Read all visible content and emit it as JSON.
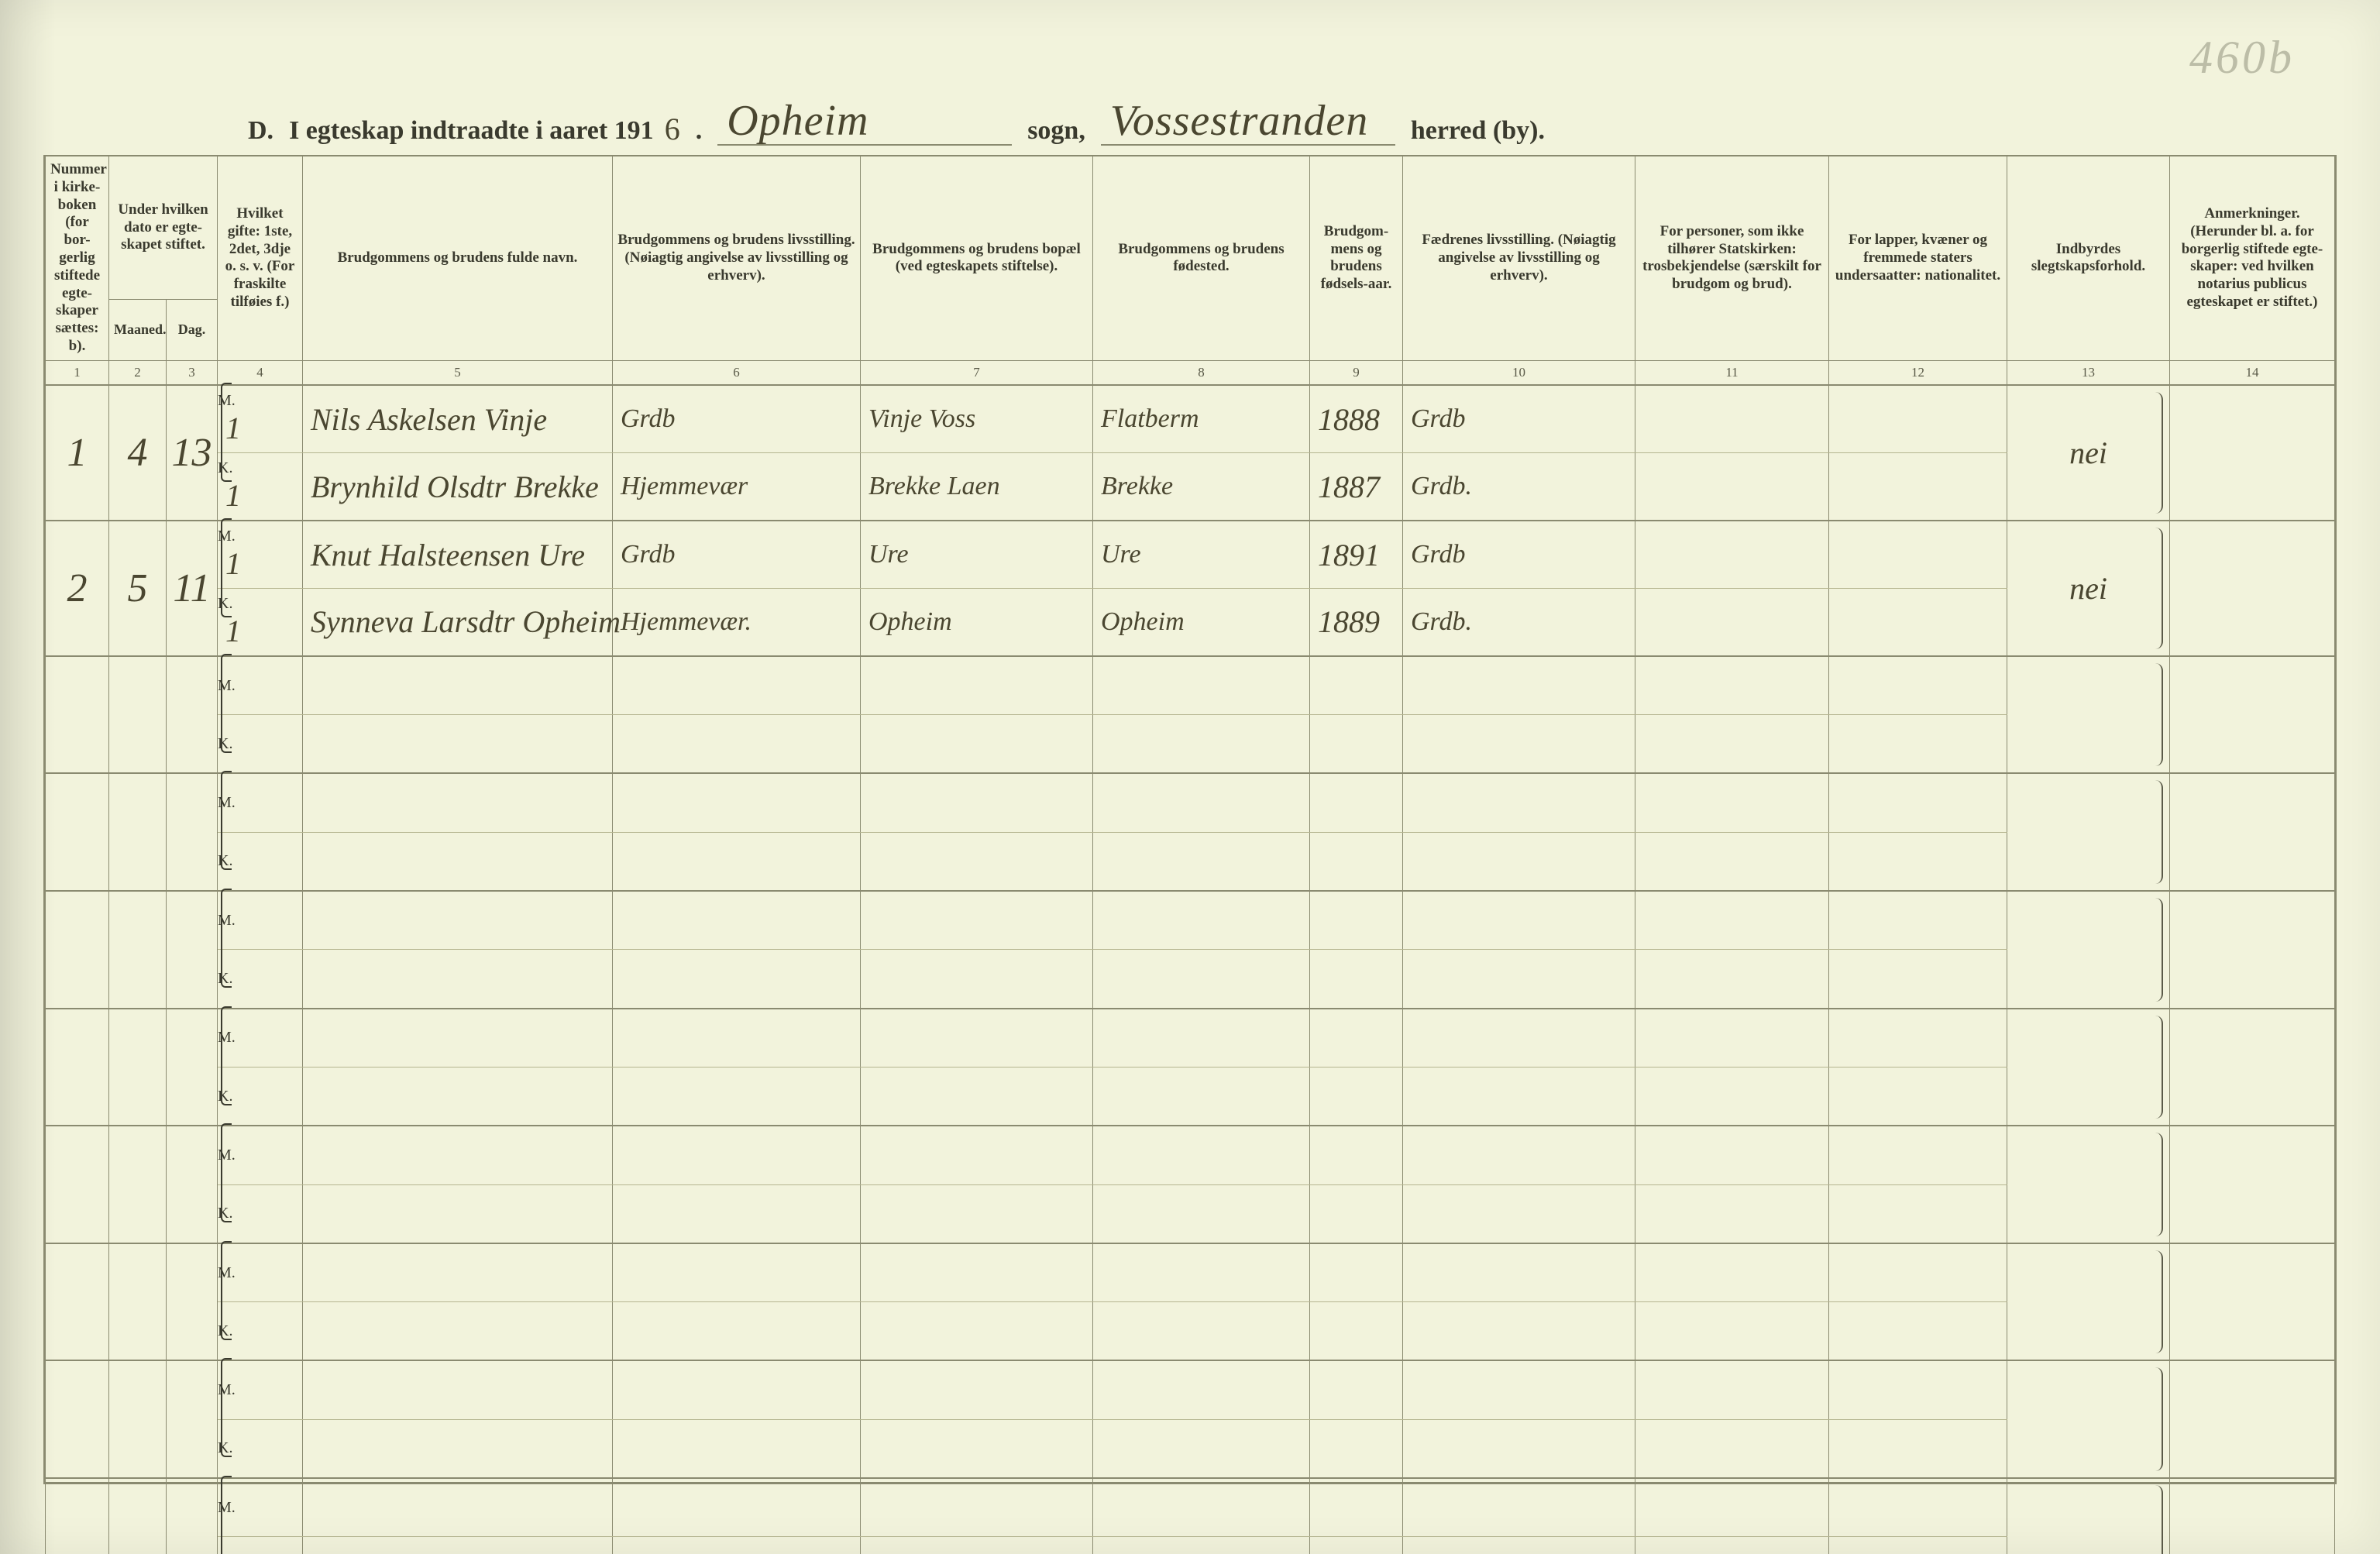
{
  "page_number_pencil": "460b",
  "title": {
    "prefix": "D.",
    "label": "I egteskap indtraadte i aaret 191",
    "year_last_digit": "6",
    "sogn_label": "sogn,",
    "herred_label": "herred (by).",
    "sogn_value": "Opheim",
    "herred_value": "Vossestranden"
  },
  "columns": {
    "1": "Nummer i kirke-boken (for bor-gerlig stiftede egte-skaper sættes: b).",
    "2_group": "Under hvilken dato er egte-skapet stiftet.",
    "2": "Maaned.",
    "3": "Dag.",
    "4": "Hvilket gifte: 1ste, 2det, 3dje o. s. v. (For fraskilte tilføies f.)",
    "5": "Brudgommens og brudens fulde navn.",
    "6": "Brudgommens og brudens livsstilling. (Nøiagtig angivelse av livsstilling og erhverv).",
    "7": "Brudgommens og brudens bopæl (ved egteskapets stiftelse).",
    "8": "Brudgommens og brudens fødested.",
    "9": "Brudgom-mens og brudens fødsels-aar.",
    "10": "Fædrenes livsstilling. (Nøiagtig angivelse av livsstilling og erhverv).",
    "11": "For personer, som ikke tilhører Statskirken: trosbekjendelse (særskilt for brudgom og brud).",
    "12": "For lapper, kvæner og fremmede staters undersaatter: nationalitet.",
    "13": "Indbyrdes slegtskapsforhold.",
    "14": "Anmerkninger. (Herunder bl. a. for borgerlig stiftede egte-skaper: ved hvilken notarius publicus egteskapet er stiftet.)"
  },
  "colnums": [
    "1",
    "2",
    "3",
    "4",
    "5",
    "6",
    "7",
    "8",
    "9",
    "10",
    "11",
    "12",
    "13",
    "14"
  ],
  "mk_labels": {
    "m": "M.",
    "k": "K."
  },
  "entries": [
    {
      "num": "1",
      "month": "4",
      "day": "13",
      "m": {
        "gifte": "1",
        "name": "Nils Askelsen Vinje",
        "occ": "Grdb",
        "residence": "Vinje Voss",
        "birthplace": "Flatberm",
        "year": "1888",
        "father": "Grdb"
      },
      "k": {
        "gifte": "1",
        "name": "Brynhild Olsdtr Brekke",
        "occ": "Hjemmevær",
        "residence": "Brekke Laen",
        "birthplace": "Brekke",
        "year": "1887",
        "father": "Grdb."
      },
      "c11": "",
      "c12": "",
      "kinship": "nei",
      "notes": ""
    },
    {
      "num": "2",
      "month": "5",
      "day": "11",
      "m": {
        "gifte": "1",
        "name": "Knut Halsteensen Ure",
        "occ": "Grdb",
        "residence": "Ure",
        "birthplace": "Ure",
        "year": "1891",
        "father": "Grdb"
      },
      "k": {
        "gifte": "1",
        "name": "Synneva Larsdtr Opheim",
        "occ": "Hjemmevær.",
        "residence": "Opheim",
        "birthplace": "Opheim",
        "year": "1889",
        "father": "Grdb."
      },
      "c11": "",
      "c12": "",
      "kinship": "nei",
      "notes": ""
    }
  ],
  "empty_row_count": 8,
  "style": {
    "paper_color": "#f2f3dc",
    "rule_color": "#8a8a70",
    "ink_color": "#3a3a2e",
    "handwriting_color": "#4a4630",
    "header_font_size_pt": 14,
    "colnum_font_size_pt": 13,
    "hand_large_pt": 38,
    "hand_med_pt": 30,
    "hand_small_pt": 26
  }
}
